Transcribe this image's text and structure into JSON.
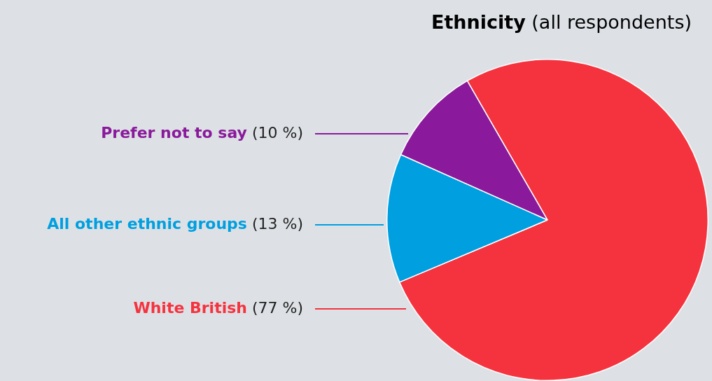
{
  "chart_data": {
    "type": "pie",
    "title": "Ethnicity",
    "subtitle": "(all respondents)",
    "categories": [
      "White British",
      "All other ethnic groups",
      "Prefer not to say"
    ],
    "values": [
      77,
      13,
      10
    ],
    "colors": [
      "#f5333f",
      "#009fe0",
      "#8a1a9b"
    ],
    "value_labels": [
      "(77 %)",
      "(13 %)",
      "(10 %)"
    ],
    "legend": false
  }
}
